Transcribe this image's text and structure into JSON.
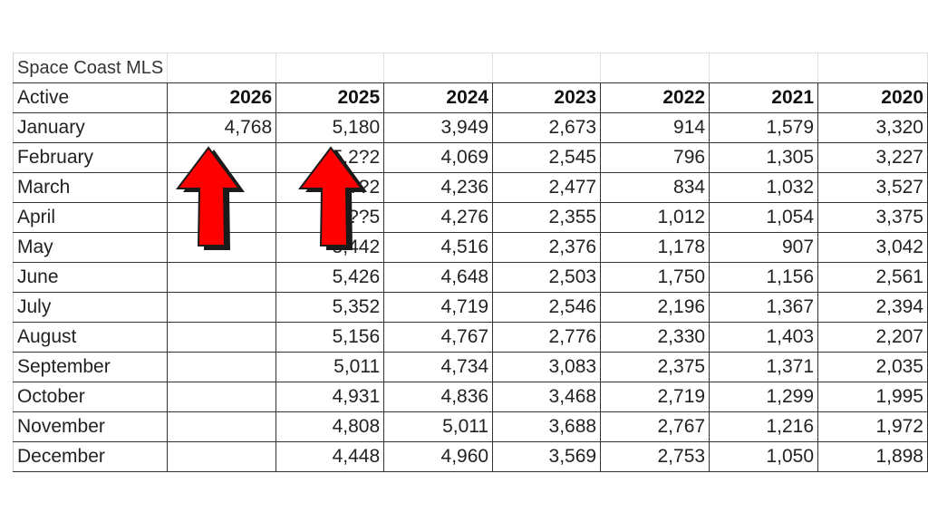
{
  "sheet": {
    "title": "Space Coast MLS",
    "header_label": "Active",
    "years": [
      "2026",
      "2025",
      "2024",
      "2023",
      "2022",
      "2021",
      "2020"
    ],
    "rows": [
      {
        "month": "January",
        "values": [
          "4,768",
          "5,180",
          "3,949",
          "2,673",
          "914",
          "1,579",
          "3,320"
        ]
      },
      {
        "month": "February",
        "values": [
          "",
          "5,2?2",
          "4,069",
          "2,545",
          "796",
          "1,305",
          "3,227"
        ]
      },
      {
        "month": "March",
        "values": [
          "",
          "5,??2",
          "4,236",
          "2,477",
          "834",
          "1,032",
          "3,527"
        ]
      },
      {
        "month": "April",
        "values": [
          "",
          "5,??5",
          "4,276",
          "2,355",
          "1,012",
          "1,054",
          "3,375"
        ]
      },
      {
        "month": "May",
        "values": [
          "",
          "5,442",
          "4,516",
          "2,376",
          "1,178",
          "907",
          "3,042"
        ]
      },
      {
        "month": "June",
        "values": [
          "",
          "5,426",
          "4,648",
          "2,503",
          "1,750",
          "1,156",
          "2,561"
        ]
      },
      {
        "month": "July",
        "values": [
          "",
          "5,352",
          "4,719",
          "2,546",
          "2,196",
          "1,367",
          "2,394"
        ]
      },
      {
        "month": "August",
        "values": [
          "",
          "5,156",
          "4,767",
          "2,776",
          "2,330",
          "1,403",
          "2,207"
        ]
      },
      {
        "month": "September",
        "values": [
          "",
          "5,011",
          "4,734",
          "3,083",
          "2,375",
          "1,371",
          "2,035"
        ]
      },
      {
        "month": "October",
        "values": [
          "",
          "4,931",
          "4,836",
          "3,468",
          "2,719",
          "1,299",
          "1,995"
        ]
      },
      {
        "month": "November",
        "values": [
          "",
          "4,808",
          "5,011",
          "3,688",
          "2,767",
          "1,216",
          "1,972"
        ]
      },
      {
        "month": "December",
        "values": [
          "",
          "4,448",
          "4,960",
          "3,569",
          "2,753",
          "1,050",
          "1,898"
        ]
      }
    ]
  },
  "annotations": {
    "arrows": [
      {
        "name": "arrow-2026-column",
        "color": "#ff0000",
        "outline": "#1a1a1a"
      },
      {
        "name": "arrow-2025-column",
        "color": "#ff0000",
        "outline": "#1a1a1a"
      }
    ]
  }
}
